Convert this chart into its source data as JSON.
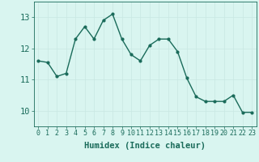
{
  "x": [
    0,
    1,
    2,
    3,
    4,
    5,
    6,
    7,
    8,
    9,
    10,
    11,
    12,
    13,
    14,
    15,
    16,
    17,
    18,
    19,
    20,
    21,
    22,
    23
  ],
  "y": [
    11.6,
    11.55,
    11.1,
    11.2,
    12.3,
    12.7,
    12.3,
    12.9,
    13.1,
    12.3,
    11.8,
    11.6,
    12.1,
    12.3,
    12.3,
    11.9,
    11.05,
    10.45,
    10.3,
    10.3,
    10.3,
    10.5,
    9.95,
    9.95
  ],
  "line_color": "#1a6b5a",
  "marker": "o",
  "marker_size": 2,
  "bg_color": "#d9f5f0",
  "grid_color": "#c8e8e2",
  "xlabel": "Humidex (Indice chaleur)",
  "xlim": [
    -0.5,
    23.5
  ],
  "ylim": [
    9.5,
    13.5
  ],
  "yticks": [
    10,
    11,
    12,
    13
  ],
  "xticks": [
    0,
    1,
    2,
    3,
    4,
    5,
    6,
    7,
    8,
    9,
    10,
    11,
    12,
    13,
    14,
    15,
    16,
    17,
    18,
    19,
    20,
    21,
    22,
    23
  ],
  "tick_color": "#1a6b5a",
  "label_color": "#1a6b5a",
  "spine_color": "#1a6b5a",
  "font_size_xlabel": 7.5,
  "font_size_xticks": 6,
  "font_size_yticks": 7.5,
  "line_width": 1.0
}
